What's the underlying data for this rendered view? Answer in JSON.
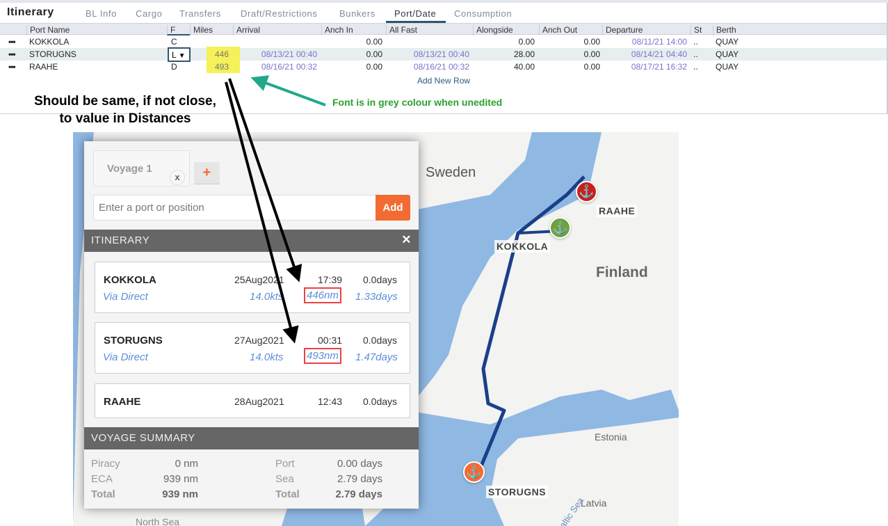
{
  "header": {
    "title": "Itinerary",
    "tabs": [
      "BL Info",
      "Cargo",
      "Transfers",
      "Draft/Restrictions",
      "Bunkers",
      "Port/Date",
      "Consumption"
    ],
    "active_tab": "Port/Date"
  },
  "grid": {
    "columns": [
      "Port Name",
      "F",
      "Miles",
      "Arrival",
      "Anch In",
      "All Fast",
      "Alongside",
      "Anch Out",
      "Departure",
      "St",
      "Berth"
    ],
    "rows": [
      {
        "port": "KOKKOLA",
        "f": "C",
        "miles": "",
        "arrival": "",
        "anch_in": "0.00",
        "all_fast": "",
        "alongside": "0.00",
        "anch_out": "0.00",
        "departure": "08/11/21 14:00",
        "st": "..",
        "berth": "QUAY"
      },
      {
        "port": "STORUGNS",
        "f": "L",
        "miles": "446",
        "arrival": "08/13/21 00:40",
        "anch_in": "0.00",
        "all_fast": "08/13/21 00:40",
        "alongside": "28.00",
        "anch_out": "0.00",
        "departure": "08/14/21 04:40",
        "st": "..",
        "berth": "QUAY"
      },
      {
        "port": "RAAHE",
        "f": "D",
        "miles": "493",
        "arrival": "08/16/21 00:32",
        "anch_in": "0.00",
        "all_fast": "08/16/21 00:32",
        "alongside": "40.00",
        "anch_out": "0.00",
        "departure": "08/17/21 16:32",
        "st": "..",
        "berth": "QUAY"
      }
    ],
    "add_row": "Add New Row"
  },
  "annotations": {
    "left_line1": "Should be same, if not close,",
    "left_line2": "to value in Distances",
    "right": "Font is in grey colour when unedited"
  },
  "map": {
    "labels": {
      "sweden": "Sweden",
      "finland": "Finland",
      "estonia": "Estonia",
      "latvia": "Latvia",
      "north_sea": "North Sea",
      "baltic": "Baltic Sea"
    },
    "ports": [
      {
        "name": "RAAHE",
        "color": "#c8201c"
      },
      {
        "name": "KOKKOLA",
        "color": "#6fa23a"
      },
      {
        "name": "STORUGNS",
        "color": "#f26b32"
      }
    ]
  },
  "panel": {
    "voyage_tab": "Voyage 1",
    "close_tab": "x",
    "add_tab": "+",
    "input_placeholder": "Enter a port or position",
    "add_button": "Add",
    "itinerary_title": "ITINERARY",
    "close": "✕",
    "legs": [
      {
        "port": "KOKKOLA",
        "date": "25Aug2021",
        "time": "17:39",
        "port_days": "0.0",
        "via": "Via Direct",
        "speed": "14.0kts",
        "distance": "446nm",
        "sea_days": "1.33days"
      },
      {
        "port": "STORUGNS",
        "date": "27Aug2021",
        "time": "00:31",
        "port_days": "0.0",
        "via": "Via Direct",
        "speed": "14.0kts",
        "distance": "493nm",
        "sea_days": "1.47days"
      },
      {
        "port": "RAAHE",
        "date": "28Aug2021",
        "time": "12:43",
        "port_days": "0.0"
      }
    ],
    "days_unit": "days",
    "summary_title": "VOYAGE SUMMARY",
    "summary": {
      "piracy_label": "Piracy",
      "piracy": "0 nm",
      "eca_label": "ECA",
      "eca": "939 nm",
      "total_label": "Total",
      "total_nm": "939 nm",
      "port_label": "Port",
      "port": "0.00 days",
      "sea_label": "Sea",
      "sea": "2.79 days",
      "total_days": "2.79 days"
    }
  },
  "colors": {
    "accent": "#f26b32",
    "highlight": "#f4f159",
    "edited_date": "#7b72c9",
    "link": "#5b8fd6"
  }
}
